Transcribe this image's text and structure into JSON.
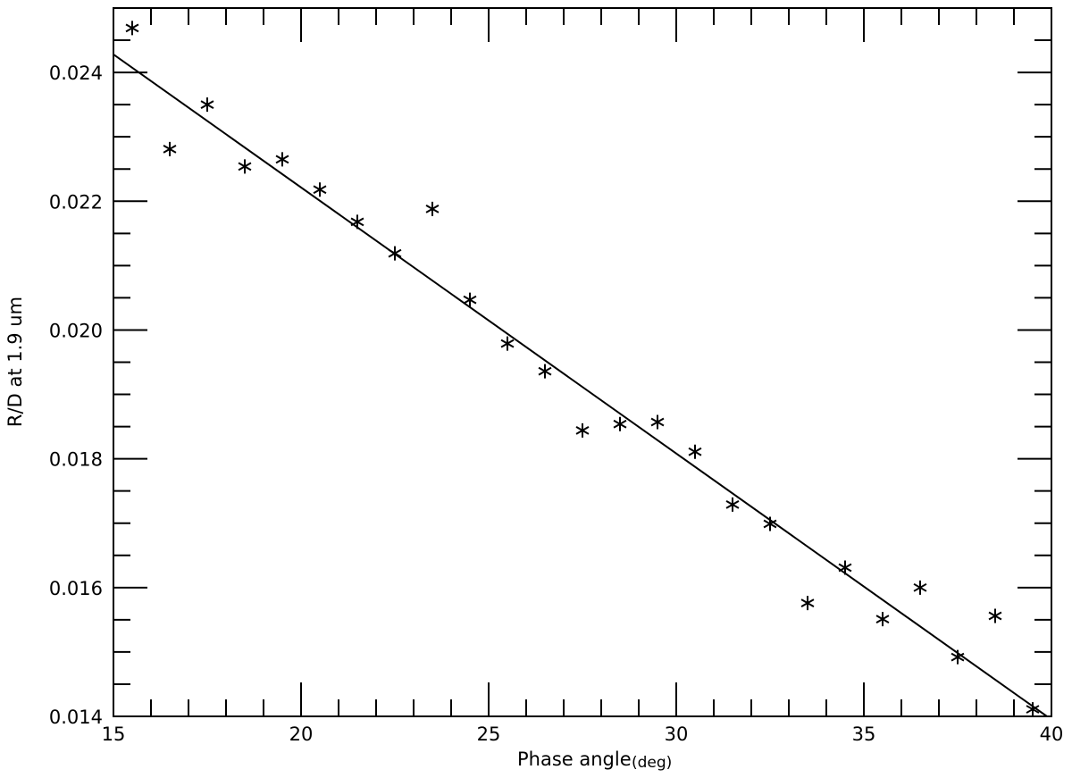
{
  "chart_data": {
    "type": "scatter",
    "x_label": "Phase angle",
    "x_unit": "(deg)",
    "y_label": "R/D at 1.9 um",
    "xlim": [
      15,
      40
    ],
    "ylim": [
      0.014,
      0.025
    ],
    "xticks": [
      15,
      20,
      25,
      30,
      35,
      40
    ],
    "yticks": [
      0.014,
      0.016,
      0.018,
      {
        "value": 0.02,
        "label": "0.020"
      },
      0.022,
      0.024
    ],
    "xminorticks": [
      16,
      17,
      18,
      19,
      21,
      22,
      23,
      24,
      26,
      27,
      28,
      29,
      31,
      32,
      33,
      34,
      36,
      37,
      38,
      39
    ],
    "yminorticks": [
      0.0145,
      0.015,
      0.0155,
      0.0165,
      0.017,
      0.0175,
      0.0185,
      0.019,
      0.0195,
      0.0205,
      0.021,
      0.0215,
      0.0225,
      0.023,
      0.0235,
      0.0245
    ],
    "color": "#000000",
    "series": [
      {
        "mode": "markers",
        "color": "#000000",
        "x": [
          15.5,
          16.5,
          17.5,
          18.5,
          19.5,
          20.5,
          21.5,
          22.5,
          23.5,
          24.5,
          25.5,
          26.5,
          27.5,
          28.5,
          29.5,
          30.5,
          31.5,
          32.5,
          33.5,
          34.5,
          35.5,
          36.5,
          37.5,
          38.5,
          39.5
        ],
        "values": [
          0.02469,
          0.02281,
          0.0235,
          0.02254,
          0.02265,
          0.02218,
          0.02168,
          0.02119,
          0.02188,
          0.02047,
          0.01979,
          0.01936,
          0.01844,
          0.01854,
          0.01857,
          0.01811,
          0.01729,
          0.01699,
          0.01576,
          0.01631,
          0.01551,
          0.016,
          0.01492,
          0.01556,
          0.01411
        ]
      },
      {
        "mode": "line",
        "color": "#000000",
        "x": [
          15,
          39.88
        ],
        "values": [
          0.02428,
          0.014
        ]
      }
    ]
  }
}
